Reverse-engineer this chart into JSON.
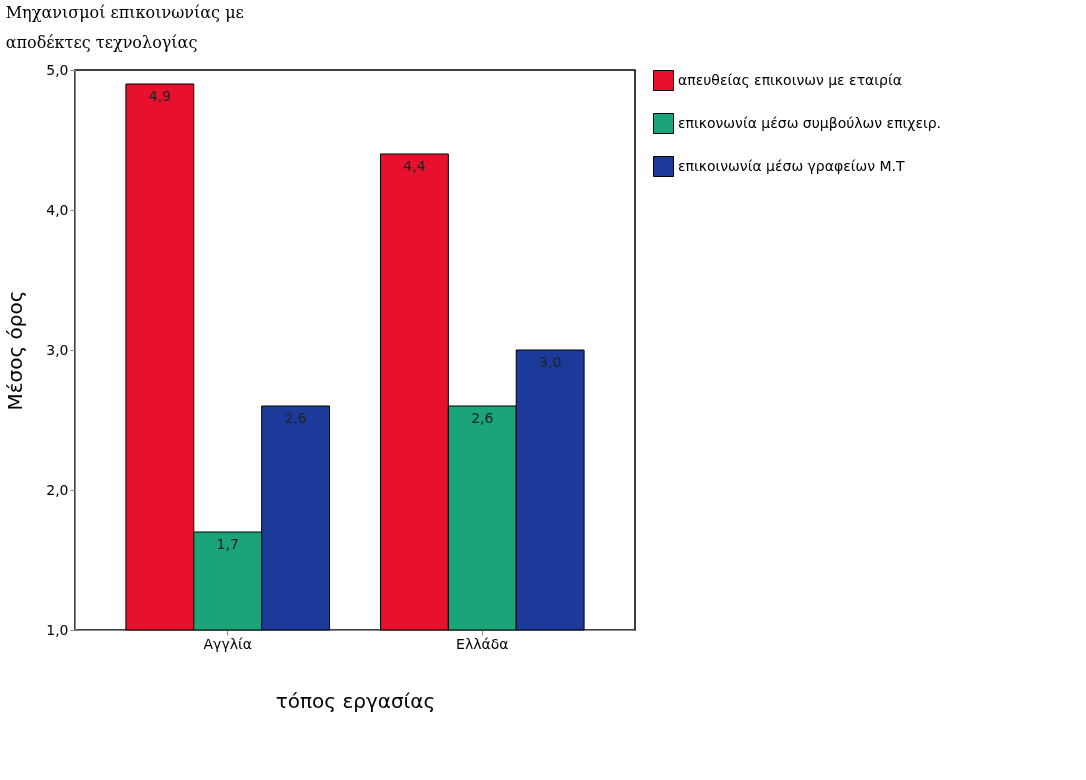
{
  "chart_data": {
    "type": "bar",
    "title": [
      "Μηχανισμοί επικοινωνίας με",
      "αποδέκτες τεχνολογίας"
    ],
    "xlabel": "τόπος εργασίας",
    "ylabel": "Μέσος όρος",
    "categories": [
      "Αγγλία",
      "Ελλάδα"
    ],
    "series": [
      {
        "name": "απευθείας επικοινων με εταιρία",
        "color": "#e8112d",
        "values": [
          4.9,
          4.4
        ],
        "value_labels": [
          "4,9",
          "4,4"
        ]
      },
      {
        "name": "επικονωνία μέσω συμβούλων επιχειρ.",
        "color": "#1ba37a",
        "values": [
          1.7,
          2.6
        ],
        "value_labels": [
          "1,7",
          "2,6"
        ]
      },
      {
        "name": "επικοινωνία μέσω γραφείων Μ.Τ",
        "color": "#1b3a9a",
        "values": [
          2.6,
          3.0
        ],
        "value_labels": [
          "2,6",
          "3,0"
        ]
      }
    ],
    "ylim": [
      1,
      5
    ],
    "yticks": [
      {
        "value": 1,
        "label": "1,0"
      },
      {
        "value": 2,
        "label": "2,0"
      },
      {
        "value": 3,
        "label": "3,0"
      },
      {
        "value": 4,
        "label": "4,0"
      },
      {
        "value": 5,
        "label": "5,0"
      }
    ],
    "grid": false,
    "legend": "right"
  }
}
